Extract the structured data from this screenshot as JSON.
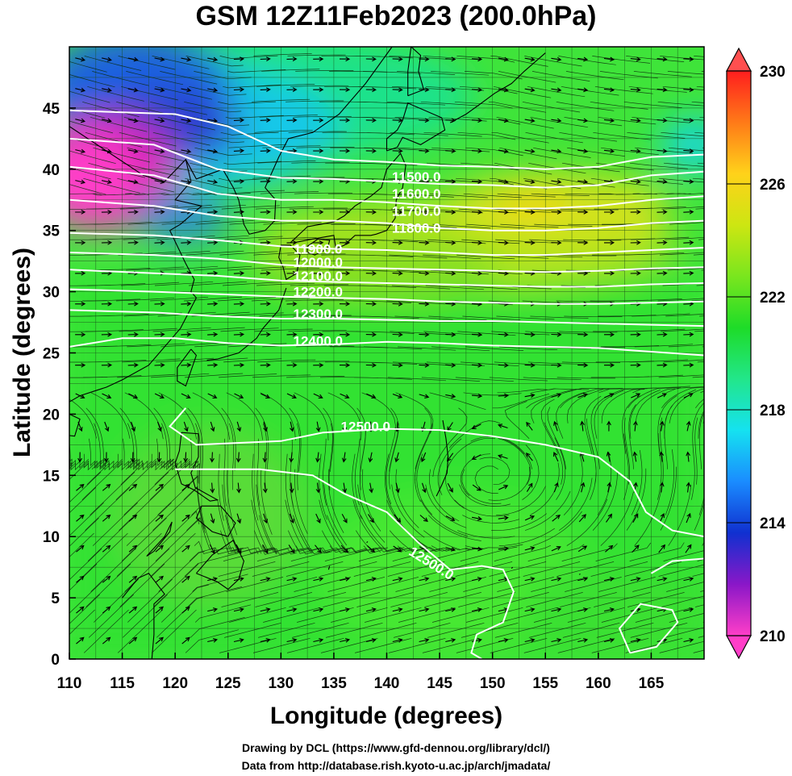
{
  "title": "GSM 12Z11Feb2023 (200.0hPa)",
  "chart_data": {
    "type": "heatmap",
    "title": "GSM 12Z11Feb2023 (200.0hPa)",
    "xlabel": "Longitude (degrees)",
    "ylabel": "Latitude  (degrees)",
    "xlim": [
      110,
      170
    ],
    "ylim": [
      0,
      50
    ],
    "x_ticks": [
      110,
      115,
      120,
      125,
      130,
      135,
      140,
      145,
      150,
      155,
      160,
      165
    ],
    "y_ticks": [
      0,
      5,
      10,
      15,
      20,
      25,
      30,
      35,
      40,
      45
    ],
    "x_tick_labels": [
      "110",
      "115",
      "120",
      "125",
      "130",
      "135",
      "140",
      "145",
      "150",
      "155",
      "160",
      "165"
    ],
    "y_tick_labels": [
      "0",
      "5",
      "10",
      "15",
      "20",
      "25",
      "30",
      "35",
      "40",
      "45"
    ],
    "grid": true,
    "colorbar": {
      "min": 210,
      "max": 230,
      "placement": "right",
      "tick_values": [
        210,
        214,
        218,
        222,
        226,
        230
      ],
      "tick_labels": [
        "210",
        "214",
        "218",
        "222",
        "226",
        "230"
      ]
    },
    "colormap": [
      "#ff3ec8",
      "#8a17c8",
      "#1030d0",
      "#1a8cff",
      "#15e2f0",
      "#22e68a",
      "#1edc28",
      "#7ae61e",
      "#cde612",
      "#ffd21a",
      "#ff7a18",
      "#ff1e1e"
    ],
    "contours": {
      "levels": [
        11500.0,
        11600.0,
        11700.0,
        11800.0,
        11900.0,
        12000.0,
        12100.0,
        12200.0,
        12300.0,
        12400.0,
        12500.0
      ],
      "labels": [
        {
          "text": "11500.0",
          "lon": 142.8,
          "lat": 39.0
        },
        {
          "text": "11600.0",
          "lon": 142.8,
          "lat": 37.6
        },
        {
          "text": "11700.0",
          "lon": 142.8,
          "lat": 36.2
        },
        {
          "text": "11800.0",
          "lon": 142.8,
          "lat": 34.8
        },
        {
          "text": "11900.0",
          "lon": 133.5,
          "lat": 33.1
        },
        {
          "text": "12000.0",
          "lon": 133.5,
          "lat": 32.0
        },
        {
          "text": "12100.0",
          "lon": 133.5,
          "lat": 30.9
        },
        {
          "text": "12200.0",
          "lon": 133.5,
          "lat": 29.6
        },
        {
          "text": "12300.0",
          "lon": 133.5,
          "lat": 27.8
        },
        {
          "text": "12400.0",
          "lon": 133.5,
          "lat": 25.6
        },
        {
          "text": "12500.0",
          "lon": 138.0,
          "lat": 18.6
        },
        {
          "text": "12500.0",
          "lon": 144.0,
          "lat": 7.5,
          "rotate": 32
        }
      ]
    }
  },
  "credits": {
    "line1": "Drawing by DCL (https://www.gfd-dennou.org/library/dcl/)",
    "line2": "Data from http://database.rish.kyoto-u.ac.jp/arch/jmadata/"
  }
}
